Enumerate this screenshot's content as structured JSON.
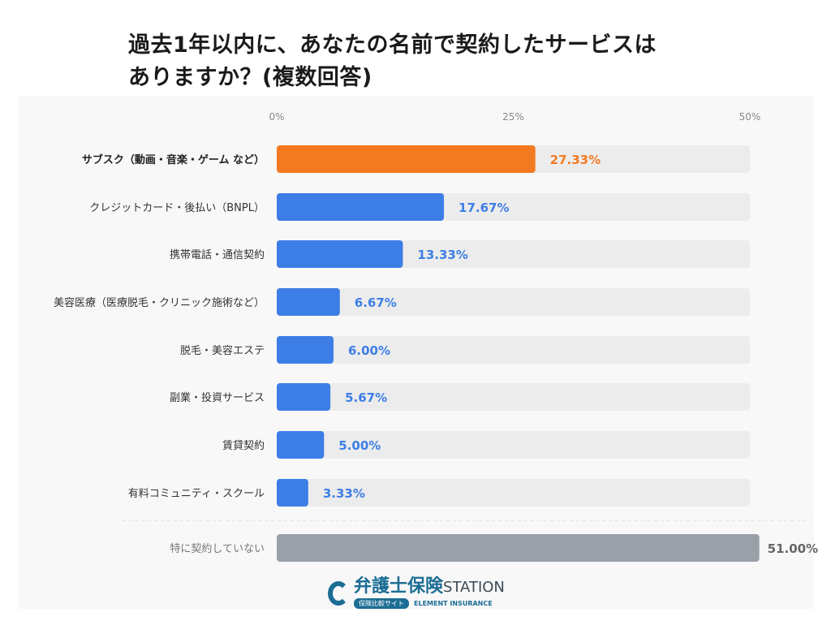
{
  "chart_data": {
    "type": "bar",
    "orientation": "horizontal",
    "title": "過去1年以内に、あなたの名前で契約したサービスはありますか？(複数回答)",
    "title_lines": [
      "過去1年以内に、あなたの名前で契約したサービスは",
      "ありますか？(複数回答)"
    ],
    "xlim": [
      0,
      50
    ],
    "x_ticks": [
      0,
      25,
      50
    ],
    "x_tick_labels": [
      "0%",
      "25%",
      "50%"
    ],
    "categories": [
      "サブスク（動画・音楽・ゲーム など）",
      "クレジットカード・後払い（BNPL）",
      "携帯電話・通信契約",
      "美容医療（医療脱毛・クリニック施術など）",
      "脱毛・美容エステ",
      "副業・投資サービス",
      "賃貸契約",
      "有料コミュニティ・スクール",
      "特に契約していない"
    ],
    "values": [
      27.33,
      17.67,
      13.33,
      6.67,
      6.0,
      5.67,
      5.0,
      3.33,
      51.0
    ],
    "value_labels": [
      "27.33%",
      "17.67%",
      "13.33%",
      "6.67%",
      "6.00%",
      "5.67%",
      "5.00%",
      "3.33%",
      "51.00%"
    ],
    "colors": {
      "highlight": "#f47a20",
      "default": "#3d7ee6",
      "none": "#9aa0a8",
      "track": "#ececec"
    }
  },
  "logo": {
    "main": "弁護士保険",
    "suffix": "STATION",
    "badge": "保険比較サイト",
    "english": "ELEMENT INSURANCE"
  }
}
